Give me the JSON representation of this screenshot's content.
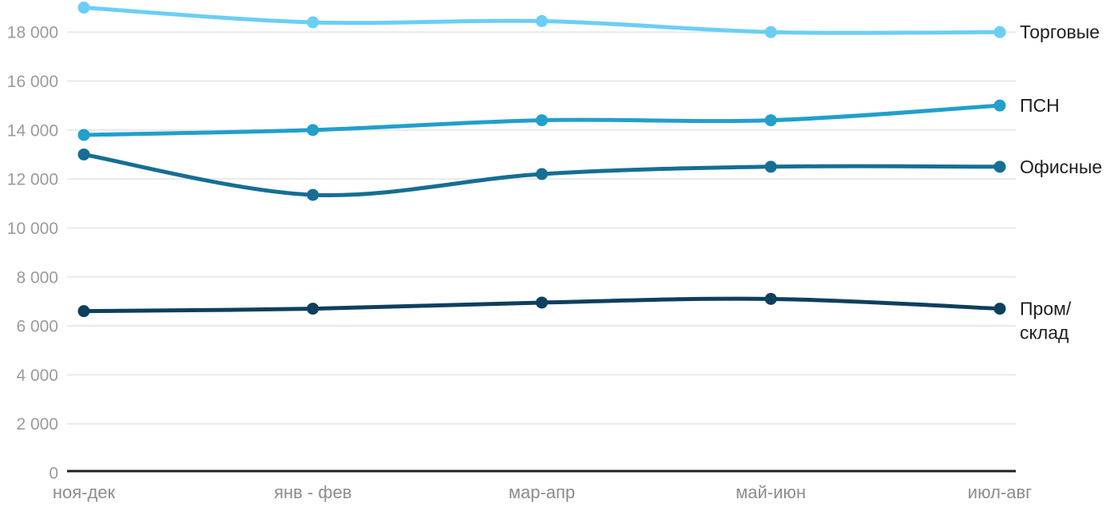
{
  "chart_data": {
    "type": "line",
    "title": "",
    "xlabel": "",
    "ylabel": "",
    "categories": [
      "ноя-дек",
      "янв - фев",
      "мар-апр",
      "май-июн",
      "июл-авг"
    ],
    "series": [
      {
        "id": "torgovye",
        "name": "Торговые",
        "color": "#6bcef5",
        "values": [
          19000,
          18400,
          18450,
          18000,
          18000
        ],
        "label_lines": [
          "Торговые"
        ]
      },
      {
        "id": "psn",
        "name": "ПСН",
        "color": "#229fcc",
        "values": [
          13800,
          14000,
          14400,
          14400,
          15000
        ],
        "label_lines": [
          "ПСН"
        ]
      },
      {
        "id": "ofisnye",
        "name": "Офисные",
        "color": "#156e93",
        "values": [
          13000,
          11350,
          12200,
          12500,
          12500
        ],
        "label_lines": [
          "Офисные"
        ]
      },
      {
        "id": "prom-sklad",
        "name": "Пром/склад",
        "color": "#0f3f5e",
        "values": [
          6600,
          6700,
          6950,
          7100,
          6700
        ],
        "label_lines": [
          "Пром/",
          "склад"
        ]
      }
    ],
    "ylim": [
      0,
      19000
    ],
    "y_ticks": [
      0,
      2000,
      4000,
      6000,
      8000,
      10000,
      12000,
      14000,
      16000,
      18000
    ],
    "y_tick_labels": [
      "0",
      "2 000",
      "4 000",
      "6 000",
      "8 000",
      "10 000",
      "12 000",
      "14 000",
      "16 000",
      "18 000"
    ],
    "grid": true,
    "legend_position": "labels-right-of-last-point"
  },
  "colors": {
    "background": "#ffffff",
    "grid_line": "#e9e9e9",
    "axis_line": "#1f1f1f",
    "y_tick_text": "#9b9b9b",
    "x_tick_text": "#8c8c8c",
    "series_label_text": "#1f1f1f"
  }
}
